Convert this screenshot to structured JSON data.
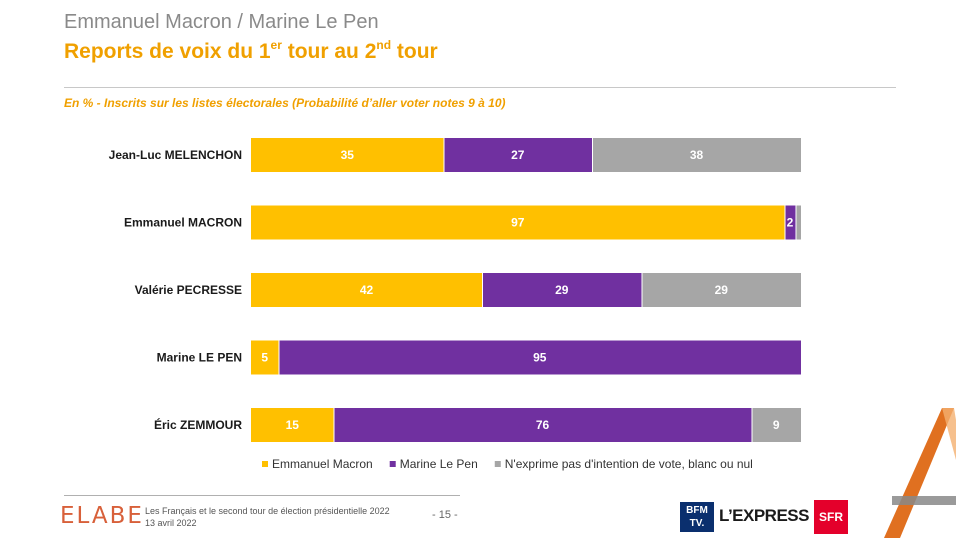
{
  "header": {
    "supertitle": "Emmanuel Macron / Marine Le Pen",
    "title_pre": "Reports de voix du 1",
    "title_sup1": "er",
    "title_mid": " tour au 2",
    "title_sup2": "nd",
    "title_post": " tour",
    "subtitle": "En % - Inscrits sur les listes électorales (Probabilité d’aller voter notes 9 à 10)"
  },
  "chart_data": {
    "type": "bar",
    "orientation": "horizontal",
    "stacked": true,
    "categories": [
      "Jean-Luc MELENCHON",
      "Emmanuel MACRON",
      "Valérie PECRESSE",
      "Marine LE PEN",
      "Éric ZEMMOUR"
    ],
    "series": [
      {
        "name": "Emmanuel Macron",
        "color": "#ffc000",
        "values": [
          35,
          97,
          42,
          5,
          15
        ]
      },
      {
        "name": "Marine Le Pen",
        "color": "#7030a0",
        "values": [
          27,
          2,
          29,
          95,
          76
        ]
      },
      {
        "name": "N'exprime pas d'intention de vote, blanc ou nul",
        "color": "#a6a6a6",
        "values": [
          38,
          1,
          29,
          0,
          9
        ]
      }
    ],
    "xlim": [
      0,
      100
    ],
    "legend": "bottom",
    "label_color": "#ffffff"
  },
  "footer": {
    "brand": "ELABE",
    "line1": "Les Français et le second tour de élection présidentielle 2022",
    "line2": "13 avril 2022",
    "page": "- 15 -",
    "logo1_top": "BFM",
    "logo1_bottom": "TV.",
    "logo2": "L’EXPRESS",
    "logo3": "SFR"
  },
  "colors": {
    "accent": "#f0a000",
    "corner_mark": "#e07020"
  }
}
